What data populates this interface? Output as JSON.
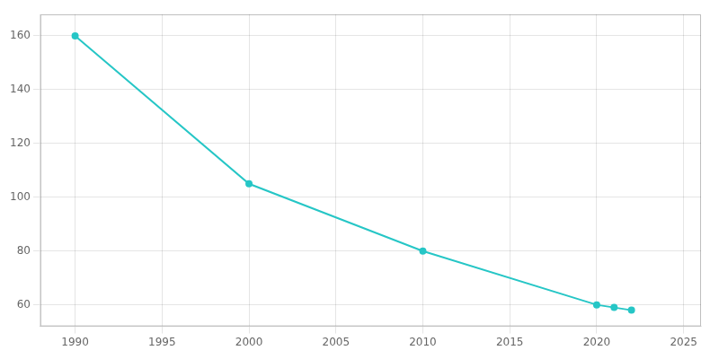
{
  "chart_data": {
    "type": "line",
    "x": [
      1990,
      2000,
      2010,
      2020,
      2021,
      2022
    ],
    "values": [
      160,
      105,
      80,
      60,
      59,
      58
    ],
    "color": "#26c6c6",
    "marker": "circle",
    "xlim": [
      1988,
      2026
    ],
    "ylim": [
      52,
      168
    ],
    "xticks": [
      1990,
      1995,
      2000,
      2005,
      2010,
      2015,
      2020,
      2025
    ],
    "yticks": [
      60,
      80,
      100,
      120,
      140,
      160
    ],
    "grid": true
  }
}
